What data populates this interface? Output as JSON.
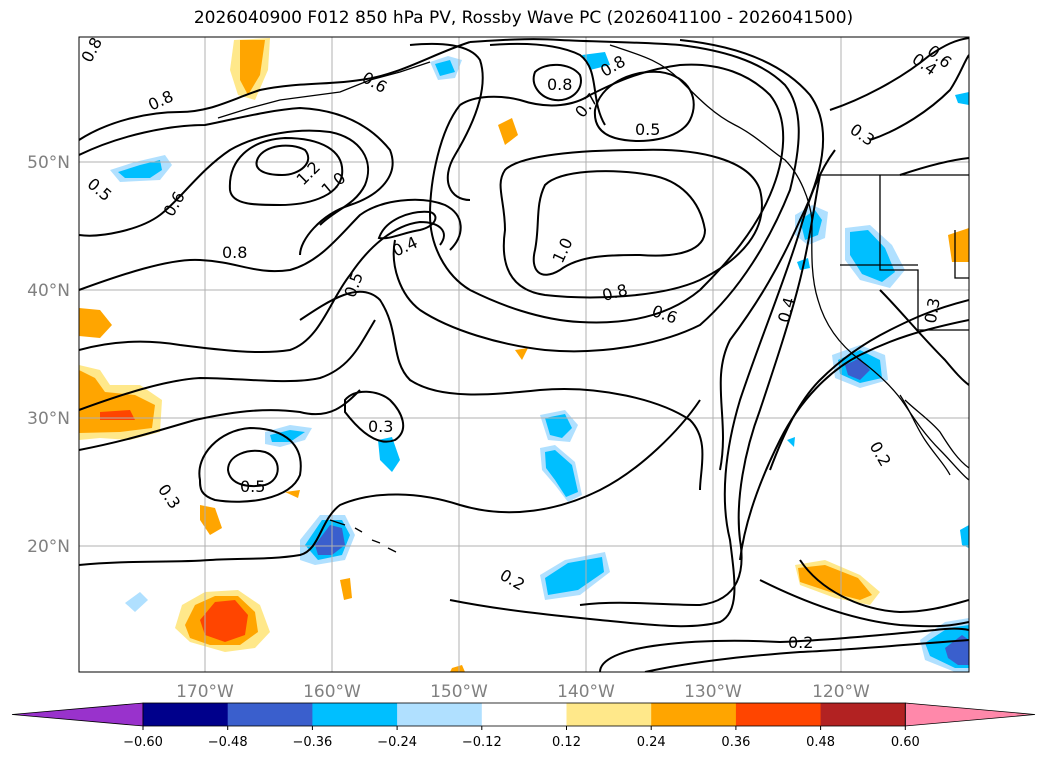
{
  "title": "2026040900 F012 850 hPa PV, Rossby Wave PC (2026041100 - 2026041500)",
  "lat_labels": [
    "50°N",
    "40°N",
    "30°N",
    "20°N"
  ],
  "lon_labels": [
    "170°W",
    "160°W",
    "150°W",
    "140°W",
    "130°W",
    "120°W"
  ],
  "contour_labels": [
    "0.8",
    "0.8",
    "0.5",
    "0.6",
    "1.2",
    "1.0",
    "0.8",
    "0.5",
    "0.4",
    "0.3",
    "0.5",
    "0.3",
    "0.8",
    "0.7",
    "0.5",
    "0.6",
    "0.4",
    "0.3",
    "1.0",
    "0.8",
    "0.6",
    "0.4",
    "0.2",
    "0.3",
    "0.2",
    "0.2",
    "0.6",
    "0.8"
  ],
  "colorbar": {
    "ticks": [
      "−0.60",
      "−0.48",
      "−0.36",
      "−0.24",
      "−0.12",
      "0.12",
      "0.24",
      "0.36",
      "0.48",
      "0.60"
    ],
    "colors": [
      "#9932cc",
      "#00008b",
      "#3a5fcd",
      "#00bfff",
      "#b0e0ff",
      "#ffffff",
      "#ffe88a",
      "#ffa500",
      "#ff4500",
      "#b22222",
      "#ff88aa"
    ]
  },
  "fill_colors": {
    "light_blue": "#b0e0ff",
    "blue": "#00bfff",
    "mid_blue": "#3a5fcd",
    "light_orange": "#ffe88a",
    "orange": "#ffa500",
    "red_orange": "#ff4500"
  }
}
